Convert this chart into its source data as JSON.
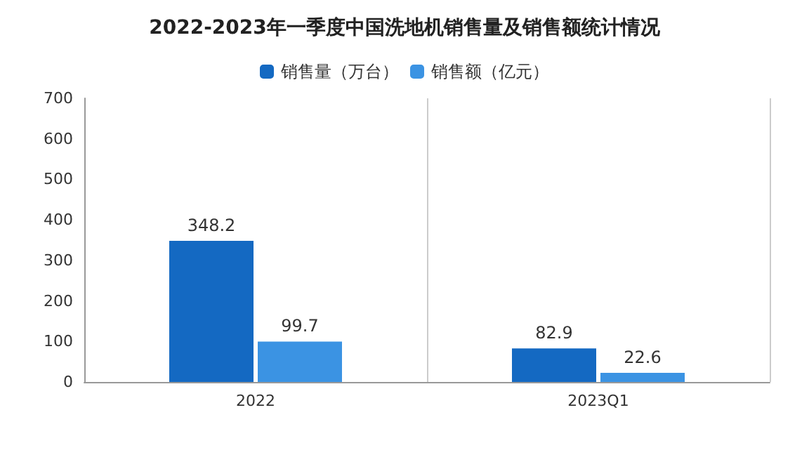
{
  "chart_data": {
    "type": "bar",
    "title": "2022-2023年一季度中国洗地机销售量及销售额统计情况",
    "categories": [
      "2022",
      "2023Q1"
    ],
    "series": [
      {
        "name": "销售量（万台）",
        "color": "#1469c2",
        "values": [
          348.2,
          82.9
        ]
      },
      {
        "name": "销售额（亿元）",
        "color": "#3b93e3",
        "values": [
          99.7,
          22.6
        ]
      }
    ],
    "ylim": [
      0,
      700
    ],
    "yticks": [
      0,
      100,
      200,
      300,
      400,
      500,
      600,
      700
    ],
    "grid": false,
    "legend": "top",
    "data_labels": true
  }
}
